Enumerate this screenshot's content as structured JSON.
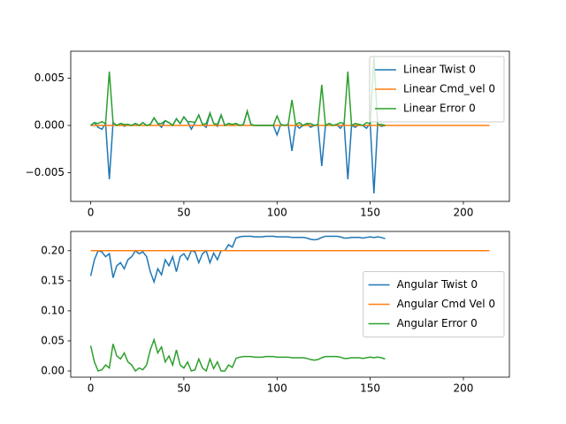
{
  "chart_data": [
    {
      "type": "line",
      "legend": "upper right",
      "x": [
        0,
        2,
        4,
        6,
        8,
        10,
        12,
        14,
        16,
        18,
        20,
        22,
        24,
        26,
        28,
        30,
        32,
        34,
        36,
        38,
        40,
        42,
        44,
        46,
        48,
        50,
        52,
        54,
        56,
        58,
        60,
        62,
        64,
        66,
        68,
        70,
        72,
        74,
        76,
        78,
        80,
        82,
        84,
        86,
        88,
        90,
        92,
        94,
        96,
        98,
        100,
        102,
        104,
        106,
        108,
        110,
        112,
        114,
        116,
        118,
        120,
        122,
        124,
        126,
        128,
        130,
        132,
        134,
        136,
        138,
        140,
        142,
        144,
        146,
        148,
        150,
        152,
        154,
        156,
        158
      ],
      "series": [
        {
          "name": "Linear Twist 0",
          "color": "#1f77b4",
          "values": [
            0,
            0.0003,
            -0.0002,
            -0.0004,
            0.0002,
            -0.0057,
            0.0003,
            0,
            0.0002,
            -0.0001,
            0.0001,
            0,
            0.0002,
            0,
            0.0003,
            0,
            0.0001,
            0.0008,
            0.0002,
            -0.0002,
            0.0005,
            0.0003,
            0,
            0.0007,
            0.0002,
            0.0009,
            0.0004,
            -0.0004,
            0.0003,
            0.0011,
            0.0001,
            -0.0002,
            0.0013,
            0.0002,
            -0.0001,
            0.0011,
            0,
            0.0002,
            0.0001,
            0.0002,
            0,
            0.0001,
            0.0015,
            0.0001,
            0,
            0,
            0,
            0,
            0,
            0,
            -0.001,
            0.0001,
            0,
            0.0001,
            -0.0027,
            0.0001,
            -0.0003,
            0,
            0.0002,
            -0.0002,
            0,
            0.0001,
            -0.0043,
            0,
            0.0002,
            0,
            0.0001,
            -0.0003,
            0.0002,
            -0.0057,
            0,
            -0.0002,
            0.0001,
            0,
            -0.0003,
            0.0002,
            -0.0072,
            0.0001,
            -0.0001,
            0
          ]
        },
        {
          "name": "Linear Cmd_vel 0",
          "color": "#ff7f0e",
          "x": [
            0,
            214
          ],
          "values": [
            0,
            0
          ]
        },
        {
          "name": "Linear Error 0",
          "color": "#2ca02c",
          "values": [
            0,
            0.0003,
            0.0002,
            0.0004,
            0.0002,
            0.0057,
            0.0003,
            0,
            0.0002,
            0.0001,
            0.0001,
            0,
            0.0002,
            0,
            0.0003,
            0,
            0.0001,
            0.0008,
            0.0002,
            0.0002,
            0.0005,
            0.0003,
            0,
            0.0007,
            0.0002,
            0.0009,
            0.0004,
            0.0004,
            0.0003,
            0.0011,
            0.0001,
            0.0002,
            0.0013,
            0.0002,
            0.0001,
            0.0011,
            0,
            0.0002,
            0.0001,
            0.0002,
            0,
            0.0001,
            0.0015,
            0.0001,
            0,
            0,
            0,
            0,
            0,
            0,
            0.001,
            0.0001,
            0,
            0.0001,
            0.0027,
            0.0001,
            0.0003,
            0,
            0.0002,
            0.0002,
            0,
            0.0001,
            0.0043,
            0,
            0.0002,
            0,
            0.0001,
            0.0003,
            0.0002,
            0.0057,
            0,
            0.0002,
            0.0001,
            0,
            0.0003,
            0.0002,
            0.0072,
            0.0001,
            0.0001,
            0
          ]
        }
      ],
      "xlim": [
        -10.7,
        224.7
      ],
      "xticks": [
        0,
        50,
        100,
        150,
        200
      ],
      "ylim": [
        -0.00804,
        0.00785
      ],
      "yticks": [
        {
          "value": -0.005,
          "label": "−0.005"
        },
        {
          "value": 0,
          "label": "0.000"
        },
        {
          "value": 0.005,
          "label": "0.005"
        }
      ]
    },
    {
      "type": "line",
      "legend": "center right",
      "x": [
        0,
        2,
        4,
        6,
        8,
        10,
        12,
        14,
        16,
        18,
        20,
        22,
        24,
        26,
        28,
        30,
        32,
        34,
        36,
        38,
        40,
        42,
        44,
        46,
        48,
        50,
        52,
        54,
        56,
        58,
        60,
        62,
        64,
        66,
        68,
        70,
        72,
        74,
        76,
        78,
        80,
        82,
        84,
        86,
        88,
        90,
        92,
        94,
        96,
        98,
        100,
        102,
        104,
        106,
        108,
        110,
        112,
        114,
        116,
        118,
        120,
        122,
        124,
        126,
        128,
        130,
        132,
        134,
        136,
        138,
        140,
        142,
        144,
        146,
        148,
        150,
        152,
        154,
        156,
        158
      ],
      "series": [
        {
          "name": "Angular Twist 0",
          "color": "#1f77b4",
          "values": [
            0.158,
            0.185,
            0.2,
            0.198,
            0.19,
            0.195,
            0.155,
            0.175,
            0.18,
            0.17,
            0.185,
            0.19,
            0.2,
            0.195,
            0.198,
            0.19,
            0.165,
            0.148,
            0.17,
            0.16,
            0.185,
            0.175,
            0.19,
            0.165,
            0.19,
            0.195,
            0.185,
            0.2,
            0.198,
            0.18,
            0.195,
            0.2,
            0.18,
            0.196,
            0.185,
            0.2,
            0.2,
            0.21,
            0.206,
            0.221,
            0.223,
            0.224,
            0.224,
            0.224,
            0.223,
            0.223,
            0.223,
            0.224,
            0.224,
            0.224,
            0.223,
            0.223,
            0.223,
            0.223,
            0.222,
            0.222,
            0.222,
            0.222,
            0.221,
            0.219,
            0.218,
            0.219,
            0.222,
            0.224,
            0.224,
            0.224,
            0.224,
            0.223,
            0.221,
            0.221,
            0.222,
            0.222,
            0.222,
            0.221,
            0.222,
            0.223,
            0.222,
            0.223,
            0.222,
            0.22
          ]
        },
        {
          "name": "Angular Cmd Vel 0",
          "color": "#ff7f0e",
          "x": [
            0,
            214
          ],
          "values": [
            0.2,
            0.2
          ]
        },
        {
          "name": "Angular Error 0",
          "color": "#2ca02c",
          "values": [
            0.042,
            0.015,
            0,
            0.002,
            0.01,
            0.005,
            0.045,
            0.025,
            0.02,
            0.03,
            0.015,
            0.01,
            0,
            0.005,
            0.002,
            0.01,
            0.035,
            0.052,
            0.03,
            0.04,
            0.015,
            0.025,
            0.01,
            0.035,
            0.01,
            0.005,
            0.015,
            0,
            0.002,
            0.02,
            0.005,
            0,
            0.02,
            0.004,
            0.015,
            0,
            0,
            0.01,
            0.006,
            0.021,
            0.023,
            0.024,
            0.024,
            0.024,
            0.023,
            0.023,
            0.023,
            0.024,
            0.024,
            0.024,
            0.023,
            0.023,
            0.023,
            0.023,
            0.022,
            0.022,
            0.022,
            0.022,
            0.021,
            0.019,
            0.018,
            0.019,
            0.022,
            0.024,
            0.024,
            0.024,
            0.024,
            0.023,
            0.021,
            0.021,
            0.022,
            0.022,
            0.022,
            0.021,
            0.022,
            0.023,
            0.022,
            0.023,
            0.022,
            0.02
          ]
        }
      ],
      "xlim": [
        -10.7,
        224.7
      ],
      "xticks": [
        0,
        50,
        100,
        150,
        200
      ],
      "ylim": [
        -0.0103,
        0.232
      ],
      "yticks": [
        {
          "value": 0,
          "label": "0.00"
        },
        {
          "value": 0.05,
          "label": "0.05"
        },
        {
          "value": 0.1,
          "label": "0.10"
        },
        {
          "value": 0.15,
          "label": "0.15"
        },
        {
          "value": 0.2,
          "label": "0.20"
        }
      ]
    }
  ]
}
